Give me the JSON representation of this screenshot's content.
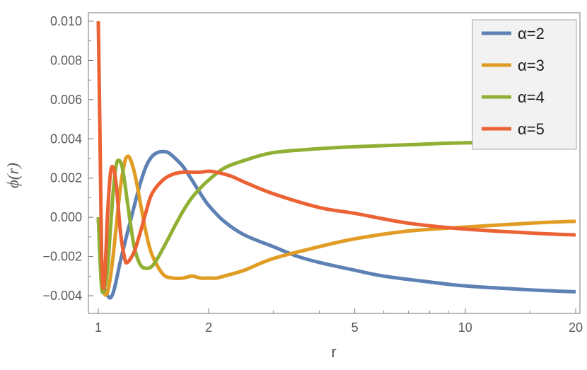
{
  "chart_data": {
    "type": "line",
    "title": "",
    "xlabel": "r",
    "ylabel": "ϕ(r)",
    "x_scale": "log",
    "xlim": [
      1,
      20
    ],
    "ylim": [
      -0.0048,
      0.0102
    ],
    "grid": false,
    "legend_position": "top-right",
    "x_ticks": [
      1,
      2,
      5,
      10,
      20
    ],
    "x_tick_labels": [
      "1",
      "2",
      "5",
      "10",
      "20"
    ],
    "y_ticks": [
      -0.004,
      -0.002,
      0.0,
      0.002,
      0.004,
      0.006,
      0.008,
      0.01
    ],
    "y_tick_labels": [
      "−0.004",
      "−0.002",
      "0.000",
      "0.002",
      "0.004",
      "0.006",
      "0.008",
      "0.010"
    ],
    "series": [
      {
        "name": "α=2",
        "color": "#5e81b5",
        "x": [
          1,
          1.02,
          1.04,
          1.06,
          1.08,
          1.1,
          1.12,
          1.15,
          1.2,
          1.25,
          1.3,
          1.35,
          1.4,
          1.45,
          1.5,
          1.55,
          1.6,
          1.7,
          1.8,
          1.9,
          2.0,
          2.2,
          2.5,
          3,
          3.5,
          4,
          5,
          6,
          8,
          10,
          15,
          20
        ],
        "y": [
          0.0,
          -0.0025,
          -0.0036,
          -0.004,
          -0.0041,
          -0.0038,
          -0.0032,
          -0.0022,
          -0.0008,
          0.0005,
          0.0017,
          0.0026,
          0.0031,
          0.0033,
          0.00335,
          0.0033,
          0.0031,
          0.0026,
          0.0019,
          0.0012,
          0.0006,
          -0.0002,
          -0.0009,
          -0.0015,
          -0.002,
          -0.0023,
          -0.0027,
          -0.003,
          -0.0033,
          -0.0035,
          -0.0037,
          -0.0038
        ]
      },
      {
        "name": "α=3",
        "color": "#e19c24",
        "x": [
          1,
          1.02,
          1.04,
          1.06,
          1.08,
          1.1,
          1.12,
          1.15,
          1.18,
          1.2,
          1.22,
          1.25,
          1.28,
          1.3,
          1.35,
          1.4,
          1.5,
          1.6,
          1.7,
          1.8,
          1.9,
          2.0,
          2.1,
          2.2,
          2.5,
          3,
          4,
          5,
          7,
          10,
          15,
          20
        ],
        "y": [
          0.0,
          -0.003,
          -0.0039,
          -0.0038,
          -0.003,
          -0.0018,
          -0.0004,
          0.0016,
          0.0028,
          0.0031,
          0.003,
          0.0024,
          0.0015,
          0.0008,
          -0.0008,
          -0.0019,
          -0.0029,
          -0.0031,
          -0.0031,
          -0.003,
          -0.0031,
          -0.0031,
          -0.0031,
          -0.003,
          -0.0027,
          -0.0021,
          -0.0015,
          -0.0011,
          -0.0007,
          -0.0005,
          -0.0003,
          -0.0002
        ]
      },
      {
        "name": "α=4",
        "color": "#8fb032",
        "x": [
          1,
          1.02,
          1.04,
          1.06,
          1.08,
          1.1,
          1.12,
          1.14,
          1.16,
          1.18,
          1.2,
          1.25,
          1.3,
          1.35,
          1.4,
          1.45,
          1.5,
          1.55,
          1.6,
          1.7,
          1.8,
          1.9,
          2.0,
          2.2,
          2.5,
          3,
          4,
          5,
          7,
          10,
          15,
          20
        ],
        "y": [
          0.0,
          -0.0035,
          -0.0036,
          -0.0026,
          -0.0005,
          0.0015,
          0.0027,
          0.0029,
          0.0026,
          0.0018,
          0.0008,
          -0.0014,
          -0.0024,
          -0.0026,
          -0.0025,
          -0.0021,
          -0.0016,
          -0.0011,
          -0.0006,
          0.0003,
          0.001,
          0.0015,
          0.0019,
          0.0025,
          0.0029,
          0.0033,
          0.0035,
          0.0036,
          0.0037,
          0.0038,
          0.0038,
          0.0038
        ]
      },
      {
        "name": "α=5",
        "color": "#eb6235",
        "x": [
          1,
          1.01,
          1.02,
          1.03,
          1.04,
          1.05,
          1.06,
          1.08,
          1.1,
          1.12,
          1.15,
          1.18,
          1.2,
          1.25,
          1.3,
          1.35,
          1.4,
          1.5,
          1.6,
          1.7,
          1.8,
          1.9,
          2.0,
          2.1,
          2.3,
          2.5,
          3,
          4,
          5,
          7,
          10,
          15,
          20
        ],
        "y": [
          0.01,
          0.0045,
          -0.0015,
          -0.0035,
          -0.0032,
          -0.0016,
          0.0002,
          0.0023,
          0.0025,
          0.0016,
          -0.0008,
          -0.0021,
          -0.0023,
          -0.0018,
          -0.0008,
          0.0003,
          0.0012,
          0.0019,
          0.0022,
          0.0023,
          0.0023,
          0.0023,
          0.00235,
          0.0023,
          0.0021,
          0.0018,
          0.0012,
          0.0005,
          0.0002,
          -0.0003,
          -0.0006,
          -0.0008,
          -0.0009
        ]
      }
    ]
  }
}
